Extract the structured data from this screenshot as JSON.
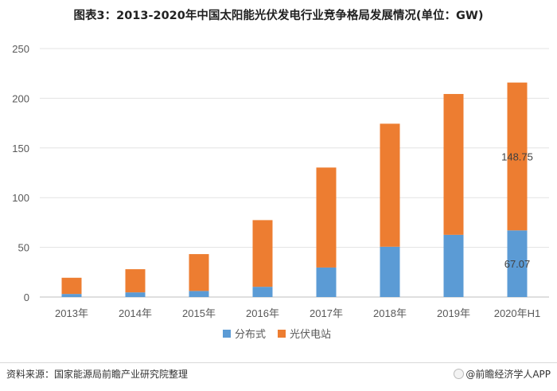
{
  "title": "图表3：2013-2020年中国太阳能光伏发电行业竞争格局发展情况(单位：GW)",
  "source": "资料来源：国家能源局前瞻产业研究院整理",
  "brand": "@前瞻经济学人APP",
  "colors": {
    "distributed": "#5b9bd5",
    "station": "#ed7d31"
  },
  "chart_data": {
    "type": "bar",
    "stacked": true,
    "categories": [
      "2013年",
      "2014年",
      "2015年",
      "2016年",
      "2017年",
      "2018年",
      "2019年",
      "2020年H1"
    ],
    "series": [
      {
        "name": "分布式",
        "values": [
          3.1,
          4.7,
          6.1,
          10.3,
          29.7,
          50.6,
          62.6,
          67.07
        ]
      },
      {
        "name": "光伏电站",
        "values": [
          16.3,
          23.3,
          37.1,
          67.1,
          100.6,
          123.8,
          141.7,
          148.75
        ]
      }
    ],
    "data_labels": {
      "series0_last": "67.07",
      "series1_last": "148.75"
    },
    "ylim": [
      0,
      250
    ],
    "yticks": [
      "0",
      "50",
      "100",
      "150",
      "200",
      "250"
    ],
    "grid": true,
    "legend": "bottom"
  }
}
